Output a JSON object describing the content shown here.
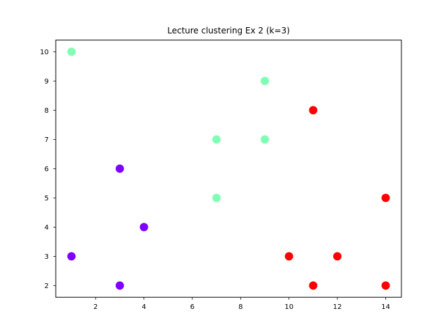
{
  "chart_data": {
    "type": "scatter",
    "title": "Lecture clustering Ex 2 (k=3)",
    "xlabel": "",
    "ylabel": "",
    "xlim": [
      0.35,
      14.65
    ],
    "ylim": [
      1.6,
      10.4
    ],
    "x_ticks": [
      2,
      4,
      6,
      8,
      10,
      12,
      14
    ],
    "y_ticks": [
      2,
      3,
      4,
      5,
      6,
      7,
      8,
      9,
      10
    ],
    "grid": false,
    "legend": "none",
    "series": [
      {
        "color": "#8000ff",
        "points": [
          [
            1,
            3
          ],
          [
            3,
            2
          ],
          [
            3,
            6
          ],
          [
            4,
            4
          ]
        ]
      },
      {
        "color": "#80ffb4",
        "points": [
          [
            1,
            10
          ],
          [
            7,
            5
          ],
          [
            7,
            7
          ],
          [
            9,
            7
          ],
          [
            9,
            9
          ]
        ]
      },
      {
        "color": "#ff0000",
        "points": [
          [
            10,
            3
          ],
          [
            11,
            2
          ],
          [
            11,
            8
          ],
          [
            12,
            3
          ],
          [
            14,
            2
          ],
          [
            14,
            5
          ]
        ]
      }
    ]
  }
}
